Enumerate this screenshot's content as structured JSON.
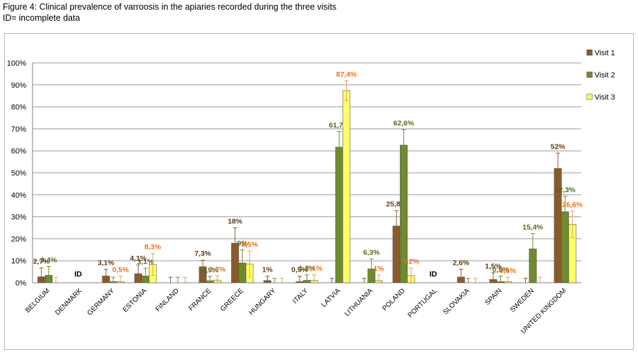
{
  "caption": {
    "line1": "Figure 4: Clinical prevalence of varroosis in the apiaries recorded during the three visits",
    "line2": "ID= incomplete data"
  },
  "colors": {
    "visit1": "#8B5A2B",
    "visit2": "#6E8B2E",
    "visit3": "#FFFF66",
    "label1": "#5C3A1A",
    "label2": "#4F6B1F",
    "label3": "#E8731E",
    "err1": "#8B5A2B",
    "err2": "#6E8B2E",
    "err3": "#E8A15E"
  },
  "chart_data": {
    "type": "bar",
    "ylim": [
      0,
      100
    ],
    "yticks": [
      "0%",
      "10%",
      "20%",
      "30%",
      "40%",
      "50%",
      "60%",
      "70%",
      "80%",
      "90%",
      "100%"
    ],
    "grid": true,
    "legend_position": "top-right",
    "categories": [
      "BELGIUM",
      "DENMARK",
      "GERMANY",
      "ESTONIA",
      "FINLAND",
      "FRANCE",
      "GREECE",
      "HUNGARY",
      "ITALY",
      "LATVIA",
      "LITHUANIA",
      "POLAND",
      "PORTUGAL",
      "SLOVAKIA",
      "SPAIN",
      "SWEDEN",
      "UNITED KINGDOM"
    ],
    "id_note": "ID",
    "id_categories": [
      "DENMARK",
      "PORTUGAL"
    ],
    "series": [
      {
        "name": "Visit 1",
        "values": [
          2.7,
          null,
          3.1,
          4.1,
          0,
          7.3,
          18,
          1,
          0.5,
          0,
          0,
          25.8,
          null,
          2.6,
          1.5,
          0,
          52
        ],
        "err": [
          4,
          null,
          3,
          4,
          2.5,
          3,
          7,
          2,
          2.5,
          2,
          2,
          7,
          null,
          3.5,
          3,
          2,
          7
        ],
        "labels": [
          "2,7%",
          "",
          "3,1%",
          "4,1%",
          "",
          "7,3%",
          "18%",
          "1%",
          "0,5%",
          "",
          "",
          "25,8%",
          "",
          "2,6%",
          "1,5%",
          "",
          "52%"
        ]
      },
      {
        "name": "Visit 2",
        "values": [
          3.4,
          null,
          0.5,
          3.1,
          0,
          0.9,
          9,
          0,
          1.1,
          61.7,
          6.3,
          62.6,
          null,
          0,
          0.5,
          15.4,
          32.3
        ],
        "err": [
          4,
          null,
          2,
          3.5,
          2.5,
          2,
          6,
          2,
          2.5,
          7,
          4.5,
          7,
          null,
          2,
          2.5,
          7,
          7
        ],
        "labels": [
          "3,4%",
          "",
          "",
          "3,1%",
          "",
          "0,9%",
          "9%",
          "",
          "1,1%",
          "61,7%",
          "6,3%",
          "62,6%",
          "",
          "",
          "0,5%",
          "15,4%",
          "32,3%"
        ]
      },
      {
        "name": "Visit 3",
        "values": [
          0,
          null,
          0.5,
          8.3,
          0,
          1.2,
          8.5,
          0,
          1.1,
          87.4,
          1,
          3.2,
          null,
          0,
          0.5,
          0,
          26.6
        ],
        "err": [
          2.5,
          null,
          2.5,
          5,
          2.5,
          2,
          6,
          2,
          2.5,
          4.5,
          2.5,
          3.5,
          null,
          2,
          2,
          2.5,
          6
        ],
        "labels": [
          "",
          "",
          "0,5%",
          "8,3%",
          "",
          "1,2%",
          "8,5%",
          "",
          "1,1%",
          "87,4%",
          "1%",
          "3,2%",
          "",
          "",
          "0,5%",
          "",
          "26,6%"
        ]
      }
    ]
  }
}
